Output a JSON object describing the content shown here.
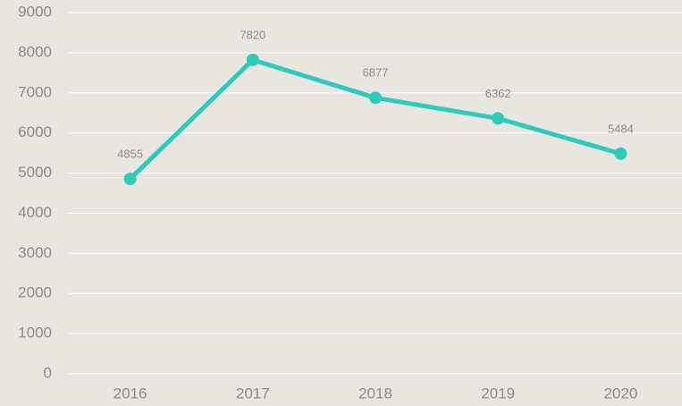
{
  "chart_data": {
    "type": "line",
    "categories": [
      "2016",
      "2017",
      "2018",
      "2019",
      "2020"
    ],
    "series": [
      {
        "color": "#2ecabb",
        "values": [
          4855,
          7820,
          6877,
          6362,
          5484
        ]
      }
    ],
    "ylim": [
      0,
      9000
    ],
    "yticks": [
      0,
      1000,
      2000,
      3000,
      4000,
      5000,
      6000,
      7000,
      8000,
      9000
    ],
    "grid": true,
    "data_labels": true
  }
}
